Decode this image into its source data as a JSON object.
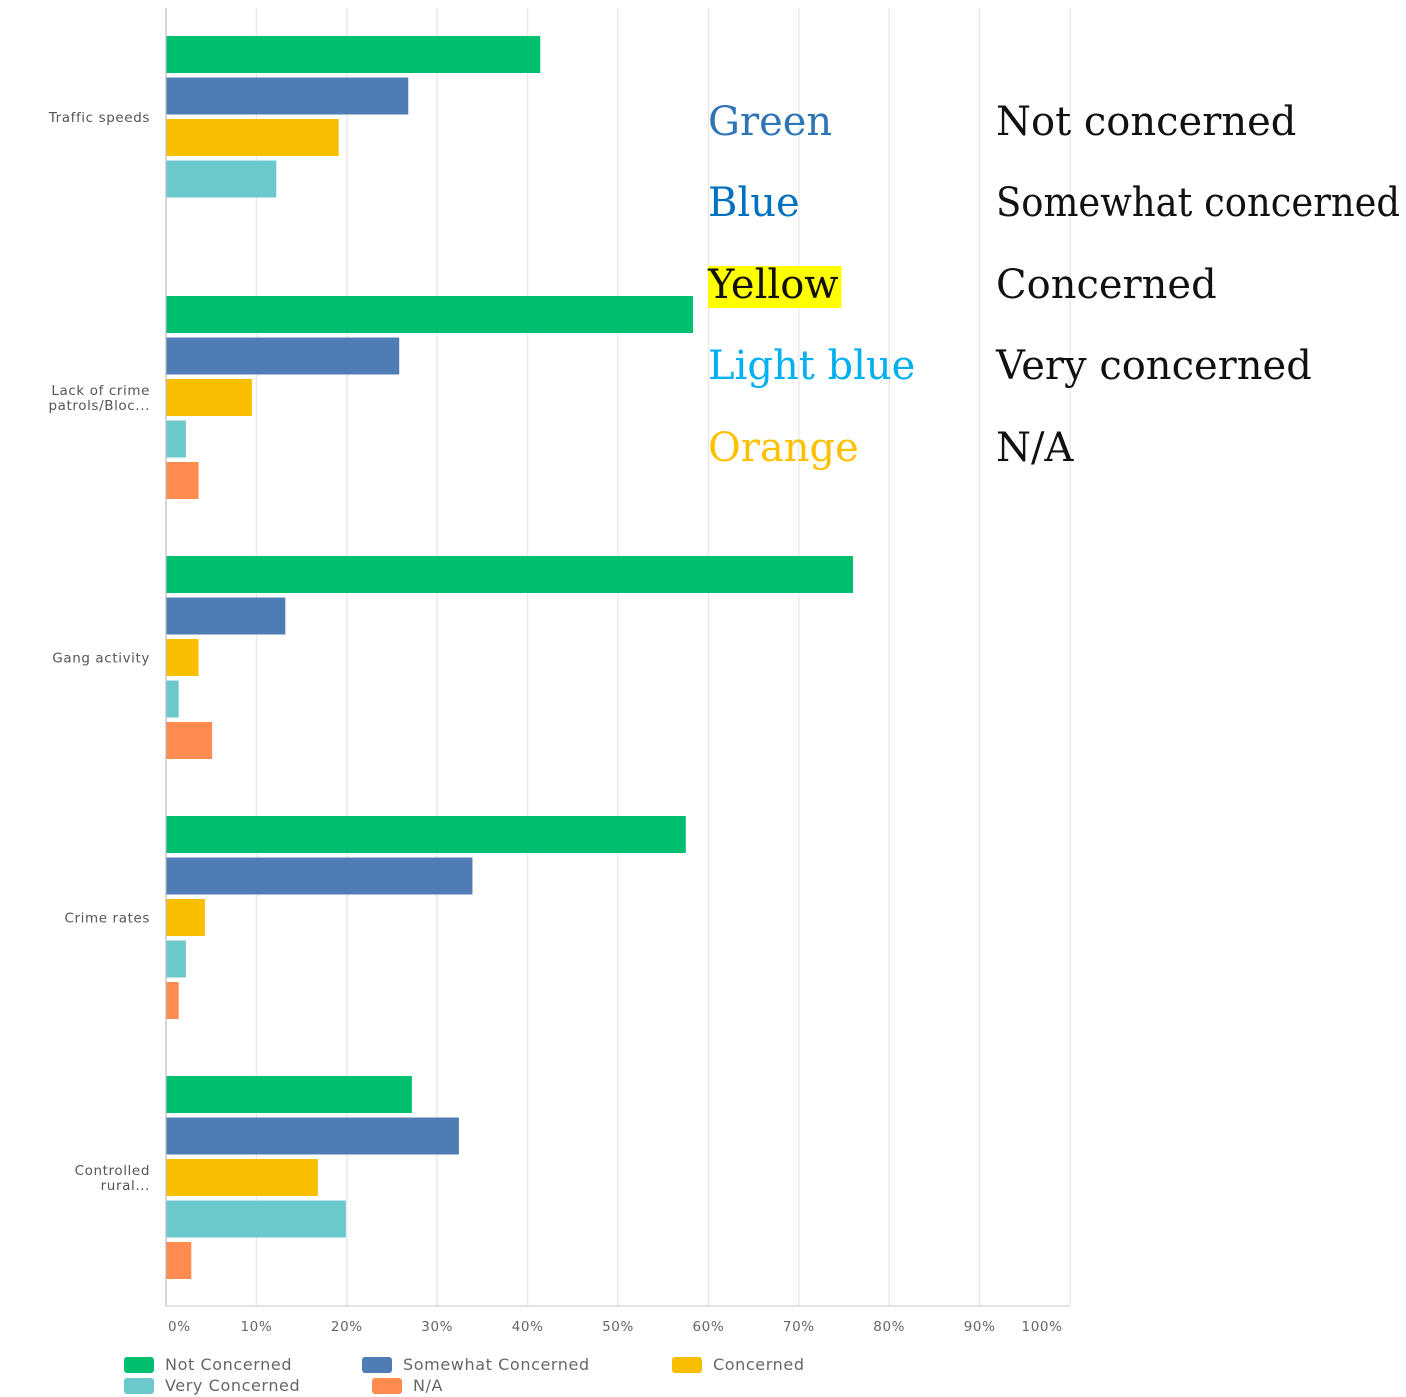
{
  "chart_data": {
    "type": "bar",
    "orientation": "horizontal",
    "categories": [
      "Traffic speeds",
      "Lack of crime patrols/Bloc...",
      "Gang activity",
      "Crime rates",
      "Controlled rural..."
    ],
    "category_lines": [
      [
        "Traffic speeds"
      ],
      [
        "Lack of crime",
        "patrols/Bloc..."
      ],
      [
        "Gang activity"
      ],
      [
        "Crime rates"
      ],
      [
        "Controlled",
        "rural..."
      ]
    ],
    "series": [
      {
        "name": "Not Concerned",
        "color": "#00BF6F",
        "values": [
          41.4,
          58.3,
          76.0,
          57.5,
          27.2
        ]
      },
      {
        "name": "Somewhat Concerned",
        "color": "#507CB6",
        "values": [
          26.8,
          25.8,
          13.2,
          33.9,
          32.4
        ]
      },
      {
        "name": "Concerned",
        "color": "#F9BE00",
        "values": [
          19.1,
          9.5,
          3.6,
          4.3,
          16.8
        ]
      },
      {
        "name": "Very Concerned",
        "color": "#6BC8CD",
        "values": [
          12.2,
          2.2,
          1.4,
          2.2,
          19.9
        ]
      },
      {
        "name": "N/A",
        "color": "#FF8B4F",
        "values": [
          0,
          3.6,
          5.1,
          1.4,
          2.8
        ]
      }
    ],
    "xlim": [
      0,
      100
    ],
    "x_ticks": [
      "0%",
      "10%",
      "20%",
      "30%",
      "40%",
      "50%",
      "60%",
      "70%",
      "80%",
      "90%",
      "100%"
    ],
    "grid": true,
    "legend_placement": "bottom"
  },
  "color_key": {
    "rows": [
      {
        "color_word": "Green",
        "meaning": "Not concerned",
        "text_color": "#2E75B6",
        "highlight": ""
      },
      {
        "color_word": "Blue",
        "meaning": "Somewhat concerned",
        "text_color": "#0070C0",
        "highlight": ""
      },
      {
        "color_word": "Yellow",
        "meaning": "Concerned",
        "text_color": "#111111",
        "highlight": "#FFFF00"
      },
      {
        "color_word": "Light blue",
        "meaning": "Very concerned",
        "text_color": "#00B0F0",
        "highlight": ""
      },
      {
        "color_word": "Orange",
        "meaning": "N/A",
        "text_color": "#FFC000",
        "highlight": ""
      }
    ]
  }
}
